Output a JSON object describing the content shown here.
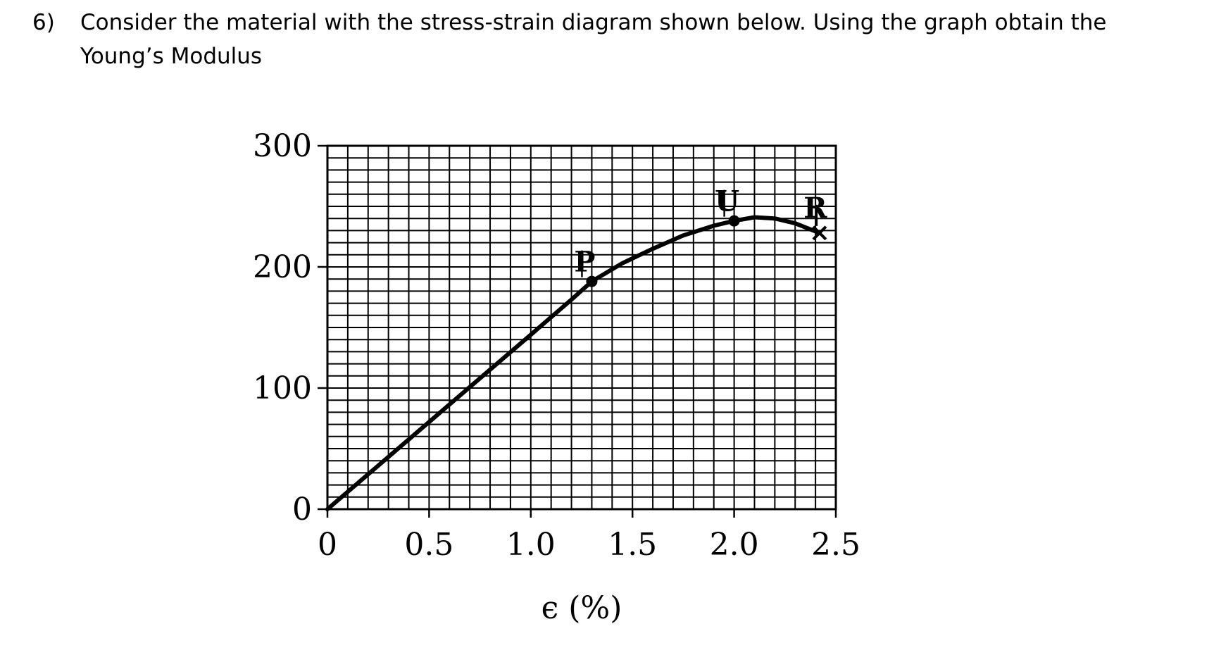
{
  "question": {
    "number": "6)",
    "line1": "Consider the material with the stress-strain diagram shown below. Using the graph obtain the",
    "line2": "Young’s Modulus"
  },
  "chart_data": {
    "type": "line",
    "title": "",
    "xlabel": "ϵ (%)",
    "ylabel": "",
    "xlim": [
      0,
      2.5
    ],
    "ylim": [
      0,
      300
    ],
    "grid": true,
    "xticks": [
      "0",
      "0.5",
      "1.0",
      "1.5",
      "2.0",
      "2.5"
    ],
    "yticks": [
      "0",
      "100",
      "200",
      "300"
    ],
    "series": [
      {
        "x": [
          0,
          0.25,
          0.5,
          0.75,
          1.0,
          1.2,
          1.3,
          1.45,
          1.6,
          1.75,
          1.9,
          2.0,
          2.1,
          2.2,
          2.3,
          2.42
        ],
        "y": [
          0,
          36,
          72,
          108,
          144,
          173,
          188,
          203,
          215,
          226,
          234,
          238,
          241,
          240,
          236,
          228
        ]
      }
    ],
    "points": [
      {
        "label": "P",
        "x": 1.3,
        "y": 188
      },
      {
        "label": "U",
        "x": 2.0,
        "y": 238
      },
      {
        "label": "R",
        "x": 2.42,
        "y": 228
      }
    ]
  }
}
